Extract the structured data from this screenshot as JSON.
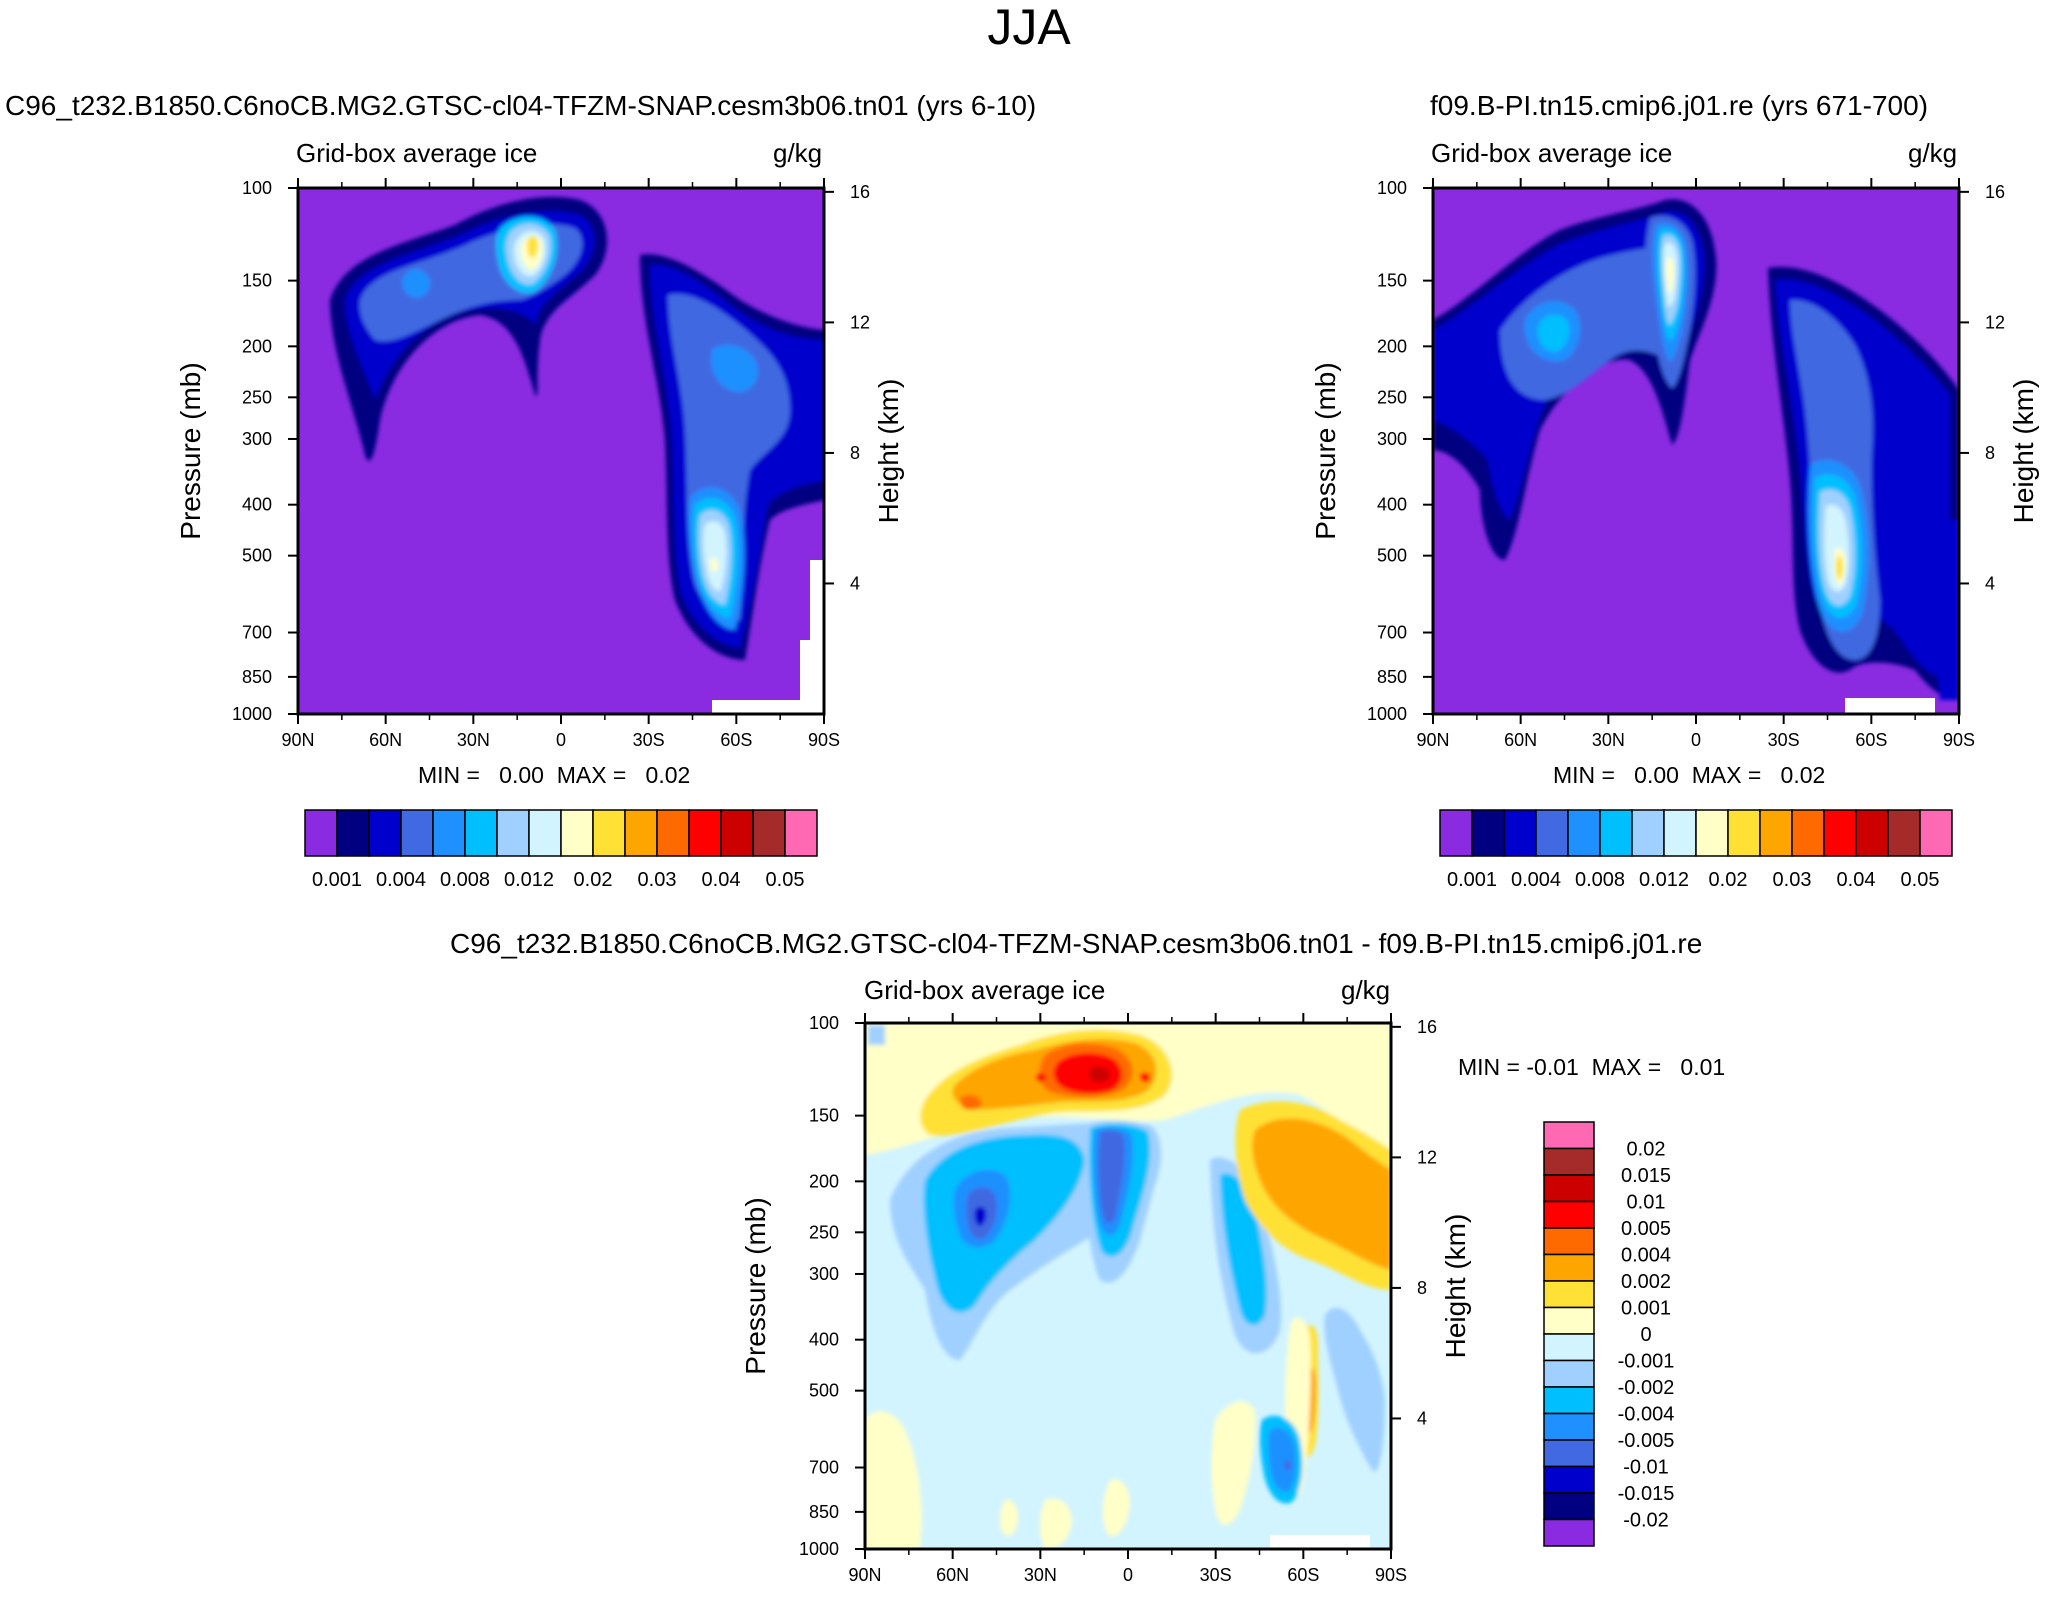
{
  "suptitle": "JJA",
  "colors": {
    "ice_palette": [
      "#8a2be2",
      "#000080",
      "#0000cd",
      "#4169e1",
      "#1e90ff",
      "#00bfff",
      "#a0d0ff",
      "#d2f4ff",
      "#ffffc8",
      "#ffe135",
      "#ffa500",
      "#ff6a00",
      "#ff0000",
      "#cd0000",
      "#a52a2a",
      "#ff69b4"
    ],
    "diff_palette": [
      "#8a2be2",
      "#000080",
      "#0000cd",
      "#4169e1",
      "#1e90ff",
      "#00bfff",
      "#a0d0ff",
      "#d2f4ff",
      "#ffffc8",
      "#ffe135",
      "#ffa500",
      "#ff6a00",
      "#ff0000",
      "#cd0000",
      "#a52a2a",
      "#ff69b4"
    ]
  },
  "chart_data": [
    {
      "type": "heatmap",
      "title": "C96_t232.B1850.C6noCB.MG2.GTSC-cl04-TFZM-SNAP.cesm3b06.tn01 (yrs 6-10)",
      "left_label": "Grid-box average ice",
      "right_label": "g/kg",
      "ylabel": "Pressure (mb)",
      "y2label": "Height (km)",
      "x_ticks": [
        "90N",
        "60N",
        "30N",
        "0",
        "30S",
        "60S",
        "90S"
      ],
      "y_ticks": [
        "100",
        "150",
        "200",
        "250",
        "300",
        "400",
        "500",
        "700",
        "850",
        "1000"
      ],
      "y2_ticks": [
        "16",
        "12",
        "8",
        "4"
      ],
      "min_text": "MIN =   0.00  MAX =   0.02",
      "colorbar_labels": [
        "0.001",
        "0.004",
        "0.008",
        "0.012",
        "0.02",
        "0.03",
        "0.04",
        "0.05"
      ]
    },
    {
      "type": "heatmap",
      "title": "f09.B-PI.tn15.cmip6.j01.re (yrs 671-700)",
      "left_label": "Grid-box average ice",
      "right_label": "g/kg",
      "ylabel": "Pressure (mb)",
      "y2label": "Height (km)",
      "x_ticks": [
        "90N",
        "60N",
        "30N",
        "0",
        "30S",
        "60S",
        "90S"
      ],
      "y_ticks": [
        "100",
        "150",
        "200",
        "250",
        "300",
        "400",
        "500",
        "700",
        "850",
        "1000"
      ],
      "y2_ticks": [
        "16",
        "12",
        "8",
        "4"
      ],
      "min_text": "MIN =   0.00  MAX =   0.02",
      "colorbar_labels": [
        "0.001",
        "0.004",
        "0.008",
        "0.012",
        "0.02",
        "0.03",
        "0.04",
        "0.05"
      ]
    },
    {
      "type": "heatmap",
      "title": "C96_t232.B1850.C6noCB.MG2.GTSC-cl04-TFZM-SNAP.cesm3b06.tn01 - f09.B-PI.tn15.cmip6.j01.re",
      "left_label": "Grid-box average ice",
      "right_label": "g/kg",
      "ylabel": "Pressure (mb)",
      "y2label": "Height (km)",
      "x_ticks": [
        "90N",
        "60N",
        "30N",
        "0",
        "30S",
        "60S",
        "90S"
      ],
      "y_ticks": [
        "100",
        "150",
        "200",
        "250",
        "300",
        "400",
        "500",
        "700",
        "850",
        "1000"
      ],
      "y2_ticks": [
        "16",
        "12",
        "8",
        "4"
      ],
      "min_text": "MIN = -0.01  MAX =   0.01",
      "colorbar_labels": [
        "0.02",
        "0.015",
        "0.01",
        "0.005",
        "0.004",
        "0.002",
        "0.001",
        "0",
        "-0.001",
        "-0.002",
        "-0.004",
        "-0.005",
        "-0.01",
        "-0.015",
        "-0.02"
      ]
    }
  ]
}
